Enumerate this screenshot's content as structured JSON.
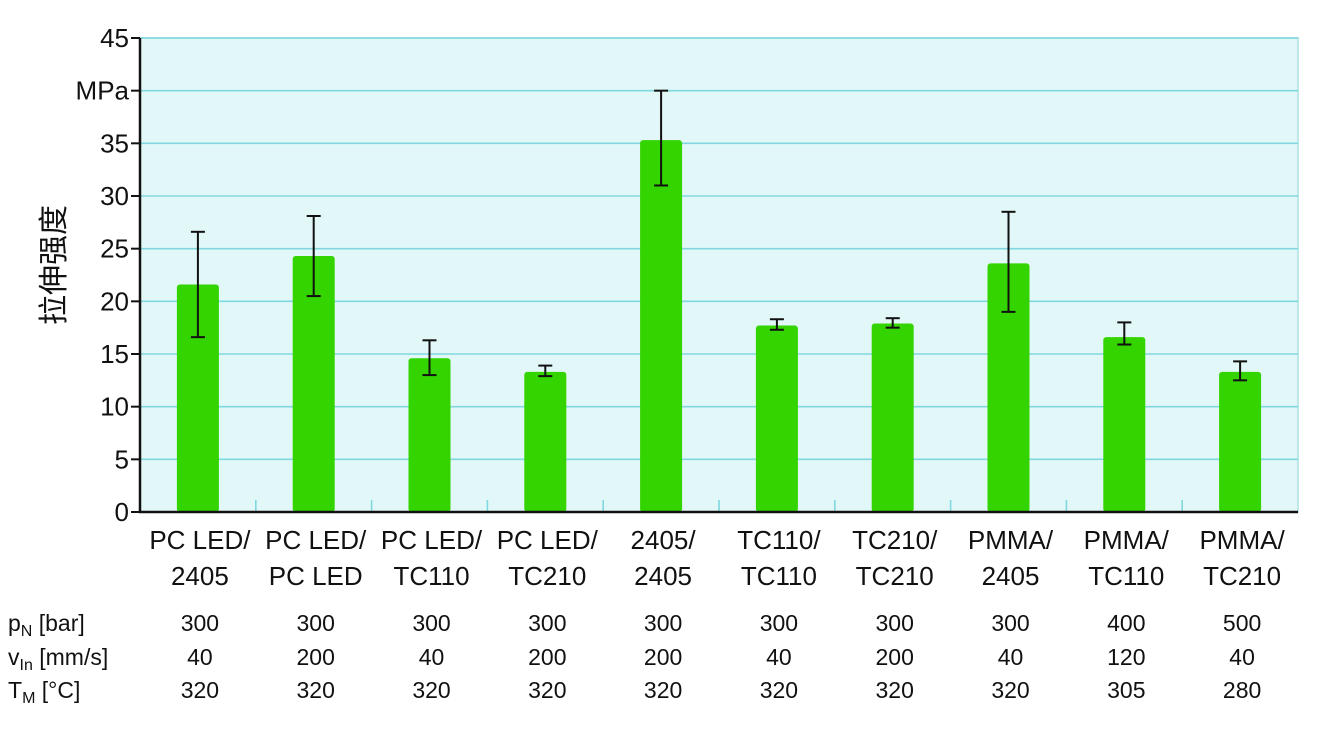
{
  "chart_data": {
    "type": "bar",
    "title": "",
    "ylabel": "拉伸强度",
    "yunit": "MPa",
    "ylim": [
      0,
      45
    ],
    "yticks": [
      "0",
      "5",
      "10",
      "15",
      "20",
      "25",
      "30",
      "35",
      "",
      "45"
    ],
    "grid": true,
    "colors": {
      "bar": "#33d400",
      "plot_bg": "#e2f8f8",
      "grid": "#7fd8e0",
      "error": "#111111"
    },
    "categories": [
      [
        "PC LED/",
        "2405"
      ],
      [
        "PC LED/",
        "PC LED"
      ],
      [
        "PC LED/",
        "TC110"
      ],
      [
        "PC LED/",
        "TC210"
      ],
      [
        "2405/",
        "2405"
      ],
      [
        "TC110/",
        "TC110"
      ],
      [
        "TC210/",
        "TC210"
      ],
      [
        "PMMA/",
        "2405"
      ],
      [
        "PMMA/",
        "TC110"
      ],
      [
        "PMMA/",
        "TC210"
      ]
    ],
    "values": [
      21.6,
      24.3,
      14.6,
      13.3,
      35.3,
      17.7,
      17.9,
      23.6,
      16.6,
      13.3
    ],
    "error_low": [
      16.6,
      20.5,
      13.0,
      12.9,
      31.0,
      17.3,
      17.5,
      19.0,
      15.9,
      12.5
    ],
    "error_high": [
      26.6,
      28.1,
      16.3,
      13.9,
      40.0,
      18.3,
      18.4,
      28.5,
      18.0,
      14.3
    ]
  },
  "params": [
    {
      "symbol": "p",
      "sub": "N",
      "unit": " [bar]",
      "values": [
        "300",
        "300",
        "300",
        "300",
        "300",
        "300",
        "300",
        "300",
        "400",
        "500"
      ]
    },
    {
      "symbol": "v",
      "sub": "In",
      "unit": " [mm/s]",
      "values": [
        "40",
        "200",
        "40",
        "200",
        "200",
        "40",
        "200",
        "40",
        "120",
        "40"
      ]
    },
    {
      "symbol": "T",
      "sub": "M",
      "unit": " [°C]",
      "values": [
        "320",
        "320",
        "320",
        "320",
        "320",
        "320",
        "320",
        "320",
        "305",
        "280"
      ]
    }
  ]
}
